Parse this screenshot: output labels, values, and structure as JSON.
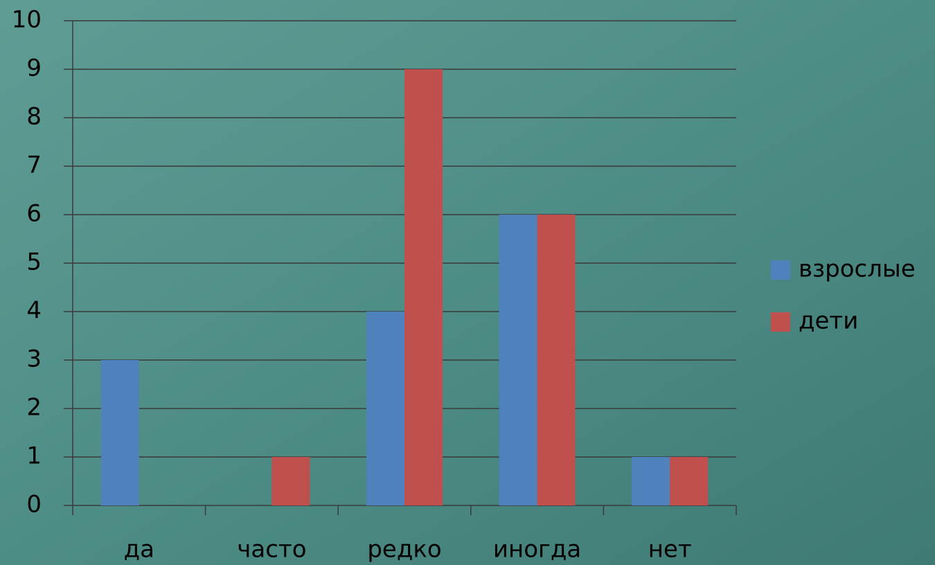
{
  "chart_data": {
    "type": "bar",
    "categories": [
      "да",
      "часто",
      "редко",
      "иногда",
      "нет"
    ],
    "series": [
      {
        "name": "взрослые",
        "color": "#4f81bd",
        "values": [
          3,
          0,
          4,
          6,
          1
        ]
      },
      {
        "name": "дети",
        "color": "#c0504d",
        "values": [
          0,
          1,
          9,
          6,
          1
        ]
      }
    ],
    "ylim": [
      0,
      10
    ],
    "yticks": [
      0,
      1,
      2,
      3,
      4,
      5,
      6,
      7,
      8,
      9,
      10
    ],
    "grid": true,
    "legend": "right"
  }
}
